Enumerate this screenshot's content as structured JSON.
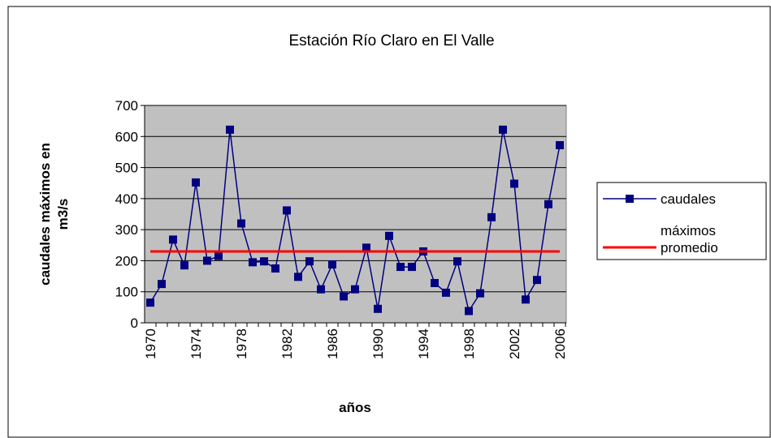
{
  "chart_data": {
    "type": "line",
    "title": "Estación Río Claro en El Valle",
    "x_label": "años",
    "y_label": "caudales  máximos en m3/s",
    "categories": [
      "1970",
      null,
      null,
      null,
      "1974",
      null,
      null,
      null,
      "1978",
      null,
      null,
      null,
      "1982",
      null,
      null,
      null,
      "1986",
      null,
      null,
      null,
      "1990",
      null,
      null,
      null,
      "1994",
      null,
      null,
      null,
      "1998",
      null,
      null,
      null,
      "2002",
      null,
      null,
      null,
      "2006"
    ],
    "series": [
      {
        "name": "caudales máximos",
        "color": "#000080",
        "marker": "square",
        "values": [
          65,
          125,
          268,
          185,
          452,
          200,
          215,
          622,
          320,
          195,
          198,
          175,
          362,
          148,
          198,
          108,
          188,
          85,
          108,
          242,
          45,
          280,
          180,
          180,
          230,
          128,
          97,
          198,
          38,
          95,
          340,
          622,
          448,
          75,
          138,
          382,
          572
        ]
      },
      {
        "name": "promedio",
        "color": "#ff0000",
        "values": [
          230,
          230,
          230,
          230,
          230,
          230,
          230,
          230,
          230,
          230,
          230,
          230,
          230,
          230,
          230,
          230,
          230,
          230,
          230,
          230,
          230,
          230,
          230,
          230,
          230,
          230,
          230,
          230,
          230,
          230,
          230,
          230,
          230,
          230,
          230,
          230,
          230
        ]
      }
    ],
    "ylim": [
      0,
      700
    ],
    "yticks": [
      0,
      100,
      200,
      300,
      400,
      500,
      600,
      700
    ],
    "grid": true,
    "legend": "right"
  }
}
